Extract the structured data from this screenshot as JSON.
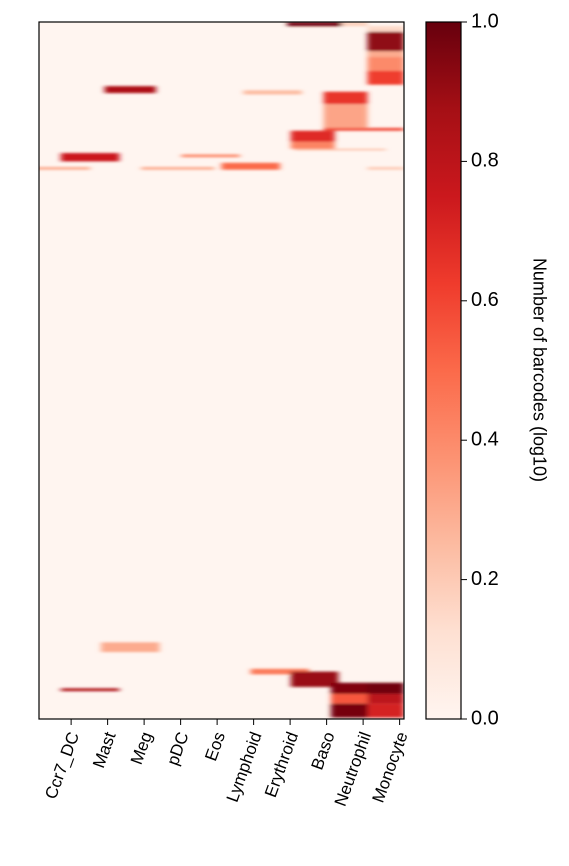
{
  "chart_data": {
    "type": "heatmap",
    "title": "",
    "xlabel": "",
    "ylabel": "",
    "categories": [
      "Ccr7_DC",
      "Mast",
      "Meg",
      "pDC",
      "Eos",
      "Lymphoid",
      "Erythroid",
      "Baso",
      "Neutrophil",
      "Monocyte"
    ],
    "colormap": "Reds",
    "colormap_stops": [
      "#fff5f0",
      "#fee0d2",
      "#fcbba1",
      "#fc9272",
      "#fb6a4a",
      "#ef3b2c",
      "#cb181d",
      "#a50f15",
      "#67000d"
    ],
    "colorbar": {
      "label": "Number of barcodes (log10)",
      "range": [
        0,
        1
      ],
      "ticks": [
        "0.0",
        "0.2",
        "0.4",
        "0.6",
        "0.8",
        "1.0"
      ]
    },
    "n_rows": 1000,
    "blocks": [
      {
        "row_start": 0,
        "row_end": 6,
        "col_start": 6.8,
        "col_end": 8.3,
        "value": 0.98
      },
      {
        "row_start": 0,
        "row_end": 6,
        "col_start": 8.3,
        "col_end": 9.0,
        "value": 0.18
      },
      {
        "row_start": 6,
        "row_end": 14,
        "col_start": 9.0,
        "col_end": 10,
        "value": 0.15
      },
      {
        "row_start": 14,
        "row_end": 42,
        "col_start": 9.0,
        "col_end": 10,
        "value": 0.92
      },
      {
        "row_start": 42,
        "row_end": 50,
        "col_start": 9.0,
        "col_end": 10,
        "value": 0.3
      },
      {
        "row_start": 50,
        "row_end": 70,
        "col_start": 9.0,
        "col_end": 10,
        "value": 0.4
      },
      {
        "row_start": 70,
        "row_end": 90,
        "col_start": 9.0,
        "col_end": 10,
        "value": 0.62
      },
      {
        "row_start": 92,
        "row_end": 102,
        "col_start": 1.8,
        "col_end": 3.2,
        "value": 0.85
      },
      {
        "row_start": 98,
        "row_end": 104,
        "col_start": 5.6,
        "col_end": 7.2,
        "value": 0.25
      },
      {
        "row_start": 100,
        "row_end": 118,
        "col_start": 7.8,
        "col_end": 9.0,
        "value": 0.65
      },
      {
        "row_start": 118,
        "row_end": 152,
        "col_start": 7.8,
        "col_end": 9.0,
        "value": 0.32
      },
      {
        "row_start": 152,
        "row_end": 156,
        "col_start": 7.8,
        "col_end": 10,
        "value": 0.6
      },
      {
        "row_start": 156,
        "row_end": 172,
        "col_start": 6.9,
        "col_end": 8.1,
        "value": 0.68
      },
      {
        "row_start": 172,
        "row_end": 182,
        "col_start": 6.9,
        "col_end": 8.1,
        "value": 0.42
      },
      {
        "row_start": 182,
        "row_end": 184,
        "col_start": 7.0,
        "col_end": 9.5,
        "value": 0.25
      },
      {
        "row_start": 188,
        "row_end": 200,
        "col_start": 0.6,
        "col_end": 2.2,
        "value": 0.75
      },
      {
        "row_start": 190,
        "row_end": 194,
        "col_start": 3.9,
        "col_end": 5.5,
        "value": 0.4
      },
      {
        "row_start": 202,
        "row_end": 212,
        "col_start": 5.0,
        "col_end": 6.6,
        "value": 0.5
      },
      {
        "row_start": 208,
        "row_end": 212,
        "col_start": 2.8,
        "col_end": 4.8,
        "value": 0.3
      },
      {
        "row_start": 208,
        "row_end": 212,
        "col_start": -0.2,
        "col_end": 1.4,
        "value": 0.3
      },
      {
        "row_start": 208,
        "row_end": 212,
        "col_start": 9.0,
        "col_end": 10,
        "value": 0.2
      },
      {
        "row_start": 890,
        "row_end": 904,
        "col_start": 1.7,
        "col_end": 3.3,
        "value": 0.3
      },
      {
        "row_start": 928,
        "row_end": 936,
        "col_start": 5.8,
        "col_end": 7.4,
        "value": 0.45
      },
      {
        "row_start": 932,
        "row_end": 954,
        "col_start": 6.9,
        "col_end": 8.2,
        "value": 0.9
      },
      {
        "row_start": 948,
        "row_end": 964,
        "col_start": 8.0,
        "col_end": 9.0,
        "value": 0.95
      },
      {
        "row_start": 948,
        "row_end": 964,
        "col_start": 9.0,
        "col_end": 10,
        "value": 0.98
      },
      {
        "row_start": 956,
        "row_end": 960,
        "col_start": 0.6,
        "col_end": 2.2,
        "value": 0.85
      },
      {
        "row_start": 964,
        "row_end": 978,
        "col_start": 8.0,
        "col_end": 9.0,
        "value": 0.55
      },
      {
        "row_start": 964,
        "row_end": 978,
        "col_start": 9.0,
        "col_end": 10,
        "value": 0.8
      },
      {
        "row_start": 978,
        "row_end": 998,
        "col_start": 8.0,
        "col_end": 9.0,
        "value": 0.97
      },
      {
        "row_start": 978,
        "row_end": 998,
        "col_start": 9.0,
        "col_end": 10,
        "value": 0.72
      }
    ]
  }
}
